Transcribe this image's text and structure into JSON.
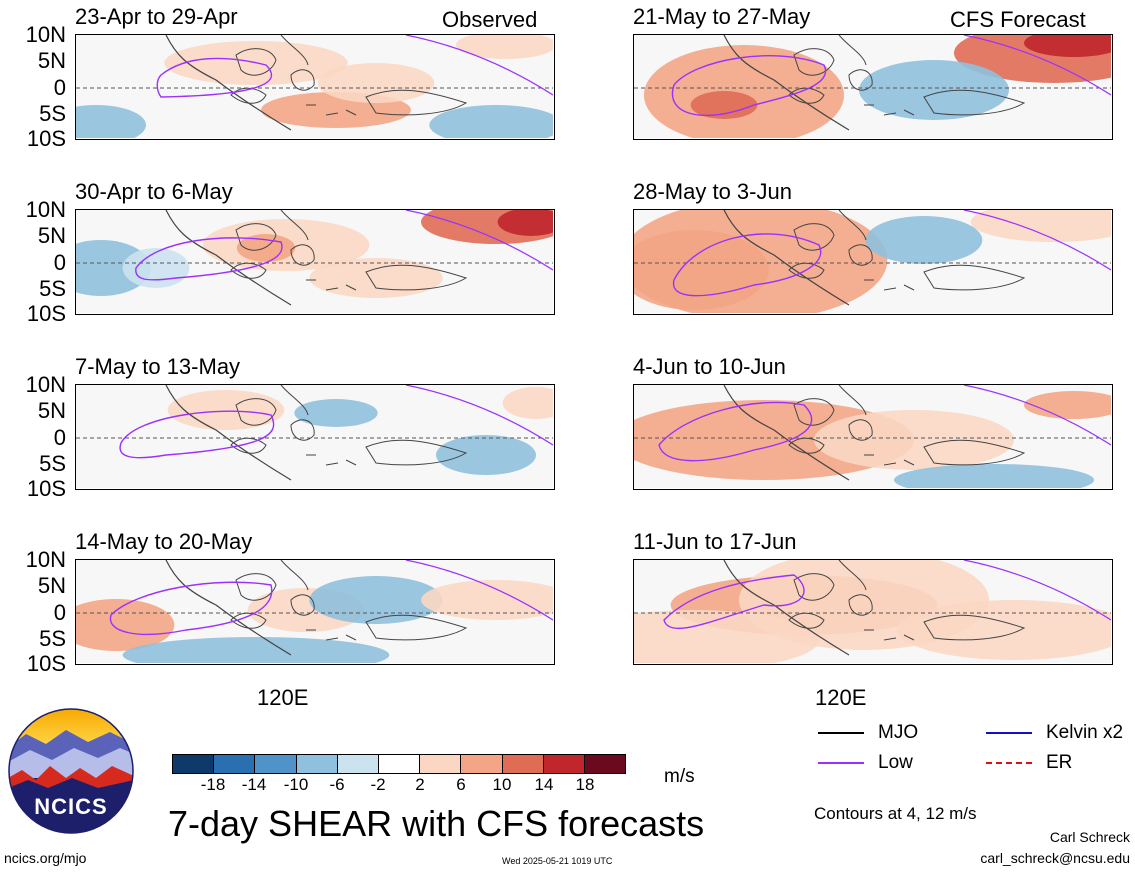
{
  "section_labels": {
    "observed": "Observed",
    "forecast": "CFS Forecast"
  },
  "panels": [
    {
      "title": "23-Apr to 29-Apr",
      "group": "observed"
    },
    {
      "title": "30-Apr to 6-May",
      "group": "observed"
    },
    {
      "title": "7-May to 13-May",
      "group": "observed"
    },
    {
      "title": "14-May to 20-May",
      "group": "observed"
    },
    {
      "title": "21-May to 27-May",
      "group": "forecast"
    },
    {
      "title": "28-May to 3-Jun",
      "group": "forecast"
    },
    {
      "title": "4-Jun to 10-Jun",
      "group": "forecast"
    },
    {
      "title": "11-Jun to 17-Jun",
      "group": "forecast"
    }
  ],
  "lat_labels": [
    "10N",
    "5N",
    "0",
    "5S",
    "10S"
  ],
  "lon_label": "120E",
  "colorbar": {
    "unit": "m/s",
    "ticks": [
      "-18",
      "-14",
      "-10",
      "-6",
      "-2",
      "2",
      "6",
      "10",
      "14",
      "18"
    ],
    "colors": [
      "#0d3a6b",
      "#2a6fb0",
      "#4f93c8",
      "#8fc0dd",
      "#cbe2ef",
      "#ffffff",
      "#fbd7c3",
      "#f3a585",
      "#df6c55",
      "#c0262c",
      "#6b0a1e"
    ]
  },
  "legend": {
    "items": [
      {
        "label": "MJO",
        "color": "#000000"
      },
      {
        "label": "Kelvin x2",
        "color": "#1010c8"
      },
      {
        "label": "Low",
        "color": "#9b30ff"
      },
      {
        "label": "ER",
        "color": "#e01010"
      }
    ],
    "contours_note": "Contours at 4, 12 m/s"
  },
  "title": "7-day SHEAR with CFS forecasts",
  "logo_text": "NCICS",
  "footer": {
    "url": "ncics.org/mjo",
    "timestamp": "Wed 2025-05-21 1019 UTC",
    "author": "Carl Schreck",
    "email": "carl_schreck@ncsu.edu"
  }
}
